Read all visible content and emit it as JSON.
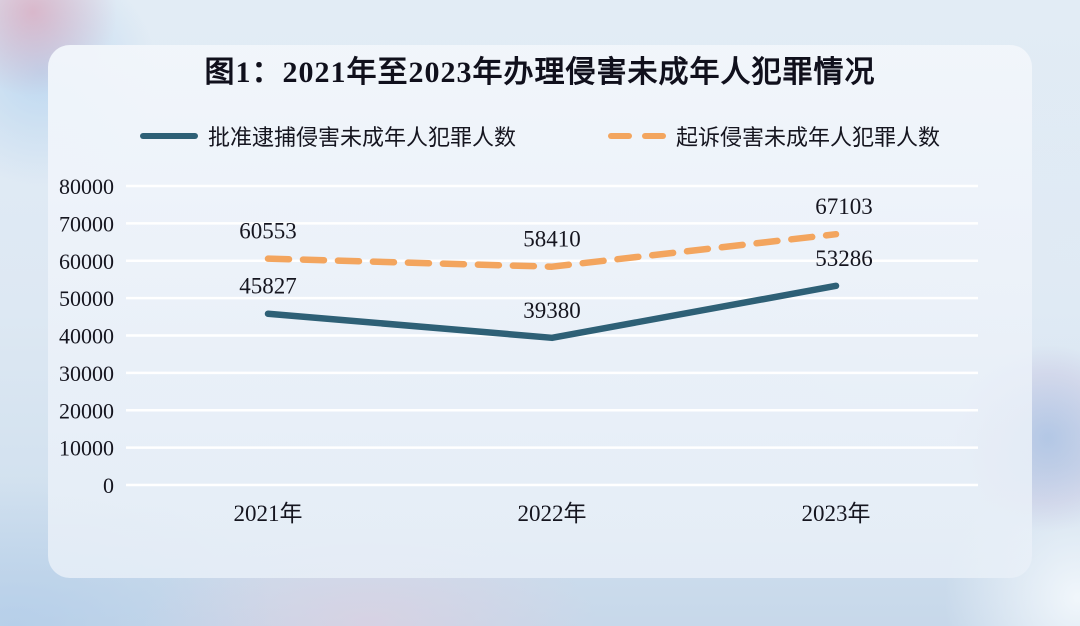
{
  "title": "图1：2021年至2023年办理侵害未成年人犯罪情况",
  "legend": {
    "items": [
      {
        "label": "批准逮捕侵害未成年人犯罪人数",
        "color": "#2e6076",
        "style": "solid"
      },
      {
        "label": "起诉侵害未成年人犯罪人数",
        "color": "#f3a55e",
        "style": "dashed"
      }
    ]
  },
  "chart_data": {
    "type": "line",
    "title": "图1：2021年至2023年办理侵害未成年人犯罪情况",
    "categories": [
      "2021年",
      "2022年",
      "2023年"
    ],
    "series": [
      {
        "name": "批准逮捕侵害未成年人犯罪人数",
        "values": [
          45827,
          39380,
          53286
        ],
        "color": "#2e6076",
        "line_style": "solid"
      },
      {
        "name": "起诉侵害未成年人犯罪人数",
        "values": [
          60553,
          58410,
          67103
        ],
        "color": "#f3a55e",
        "line_style": "dashed"
      }
    ],
    "xlabel": "",
    "ylabel": "",
    "ylim": [
      0,
      80000
    ],
    "yticks": [
      0,
      10000,
      20000,
      30000,
      40000,
      50000,
      60000,
      70000,
      80000
    ],
    "grid": true,
    "gridline_color": "#ffffff",
    "legend_position": "top",
    "data_labels": true
  }
}
